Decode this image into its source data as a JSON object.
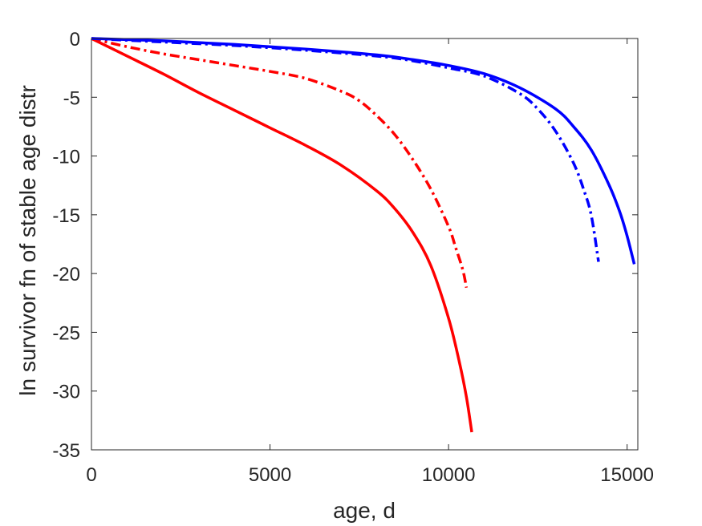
{
  "chart_data": {
    "type": "line",
    "title": "",
    "xlabel": "age, d",
    "ylabel": "ln survivor fn of stable age distr",
    "xlim": [
      0,
      15300
    ],
    "ylim": [
      -35,
      0
    ],
    "xticks": [
      0,
      5000,
      10000,
      15000
    ],
    "yticks": [
      0,
      -5,
      -10,
      -15,
      -20,
      -25,
      -30,
      -35
    ],
    "grid": false,
    "legend": "none",
    "series": [
      {
        "color": "#ff0000",
        "style": "solid",
        "x": [
          0,
          1000,
          2000,
          3000,
          4000,
          5000,
          6000,
          7000,
          8000,
          8500,
          9000,
          9500,
          10000,
          10300,
          10500,
          10650
        ],
        "y": [
          0,
          -1.5,
          -3.0,
          -4.6,
          -6.1,
          -7.6,
          -9.1,
          -10.8,
          -13.0,
          -14.5,
          -16.5,
          -19.3,
          -23.8,
          -27.5,
          -30.5,
          -33.5
        ]
      },
      {
        "color": "#ff0000",
        "style": "dashdot",
        "x": [
          0,
          1000,
          2000,
          3000,
          4000,
          5000,
          6000,
          7000,
          7500,
          8000,
          8500,
          9000,
          9500,
          10000,
          10200,
          10400,
          10500
        ],
        "y": [
          0,
          -0.7,
          -1.3,
          -1.8,
          -2.3,
          -2.8,
          -3.4,
          -4.5,
          -5.3,
          -6.6,
          -8.2,
          -10.3,
          -12.8,
          -16.0,
          -17.8,
          -19.7,
          -21.2
        ]
      },
      {
        "color": "#0000ff",
        "style": "dashdot",
        "x": [
          0,
          2000,
          4000,
          6000,
          8000,
          9000,
          10000,
          11000,
          12000,
          12500,
          13000,
          13500,
          13800,
          14000,
          14200
        ],
        "y": [
          0,
          -0.3,
          -0.6,
          -1.0,
          -1.5,
          -1.9,
          -2.5,
          -3.2,
          -4.7,
          -6.0,
          -7.9,
          -10.6,
          -13.0,
          -15.1,
          -19.0
        ]
      },
      {
        "color": "#0000ff",
        "style": "solid",
        "x": [
          0,
          2000,
          4000,
          6000,
          8000,
          9000,
          10000,
          11000,
          12000,
          13000,
          13500,
          14000,
          14500,
          14800,
          15000,
          15200
        ],
        "y": [
          0,
          -0.2,
          -0.5,
          -0.9,
          -1.4,
          -1.8,
          -2.3,
          -3.0,
          -4.2,
          -6.0,
          -7.5,
          -9.5,
          -12.5,
          -14.8,
          -16.8,
          -19.2
        ]
      }
    ]
  }
}
